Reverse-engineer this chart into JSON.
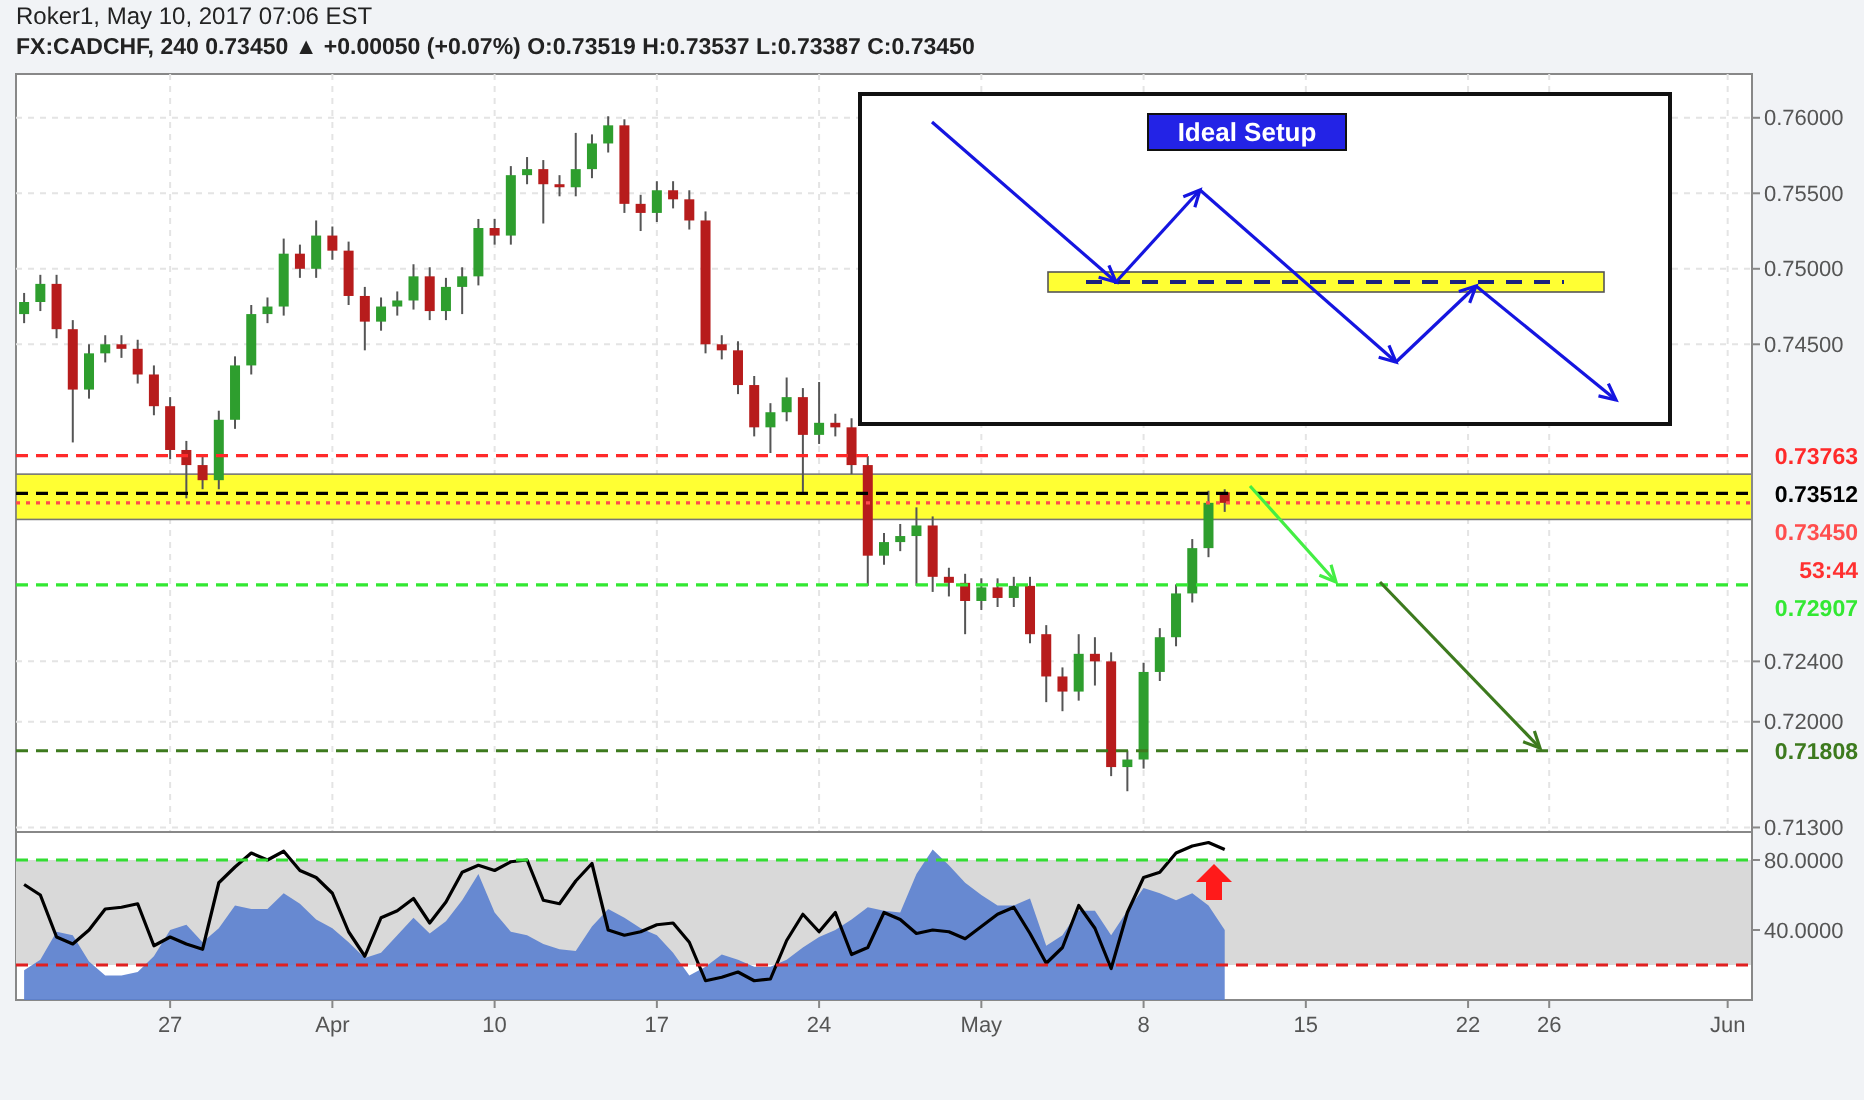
{
  "chart_data": [
    {
      "type": "candlestick",
      "title": "Roker1, May 10, 2017 07:06 EST",
      "subtitle": "FX:CADCHF, 240  0.73450 ▲ +0.00050 (+0.07%)  O:0.73519  H:0.73537  L:0.73387  C:0.73450",
      "categories": [
        null,
        null,
        null,
        null,
        null,
        null,
        null,
        null,
        null,
        null,
        null,
        null,
        null,
        null,
        null,
        null,
        null,
        null,
        null,
        null,
        null,
        null,
        null,
        null,
        null,
        null,
        null,
        null,
        null,
        null,
        null,
        null,
        null,
        null,
        null,
        null,
        null,
        null,
        null,
        null,
        null,
        null,
        null,
        null,
        null,
        null,
        null,
        null,
        null,
        null,
        null,
        null,
        null,
        null,
        null,
        null,
        null,
        null,
        null,
        null,
        null,
        null,
        null,
        null,
        null,
        null,
        null,
        null,
        null,
        null,
        null,
        null,
        null,
        null,
        null,
        null,
        null,
        null,
        null,
        null,
        null,
        null,
        null,
        null,
        null,
        null,
        null,
        null,
        null,
        null,
        null,
        null,
        null,
        null,
        null,
        null,
        null,
        null,
        null,
        null,
        null,
        null,
        null,
        null,
        null,
        null,
        null
      ],
      "ohlc": [
        [
          0.747,
          0.7484,
          0.7464,
          0.7478
        ],
        [
          0.7478,
          0.7496,
          0.7472,
          0.749
        ],
        [
          0.749,
          0.7496,
          0.7454,
          0.746
        ],
        [
          0.746,
          0.7466,
          0.7385,
          0.742
        ],
        [
          0.742,
          0.745,
          0.7414,
          0.7444
        ],
        [
          0.7444,
          0.7456,
          0.7438,
          0.745
        ],
        [
          0.745,
          0.7456,
          0.7441,
          0.7447
        ],
        [
          0.7447,
          0.7453,
          0.7424,
          0.743
        ],
        [
          0.743,
          0.7436,
          0.7403,
          0.7409
        ],
        [
          0.7409,
          0.7415,
          0.7374,
          0.738
        ],
        [
          0.738,
          0.7386,
          0.7348,
          0.737
        ],
        [
          0.737,
          0.7376,
          0.7354,
          0.736
        ],
        [
          0.736,
          0.7406,
          0.7354,
          0.74
        ],
        [
          0.74,
          0.7442,
          0.7394,
          0.7436
        ],
        [
          0.7436,
          0.7476,
          0.743,
          0.747
        ],
        [
          0.747,
          0.7481,
          0.7464,
          0.7475
        ],
        [
          0.7475,
          0.752,
          0.7469,
          0.751
        ],
        [
          0.751,
          0.7516,
          0.7494,
          0.75
        ],
        [
          0.75,
          0.7532,
          0.7494,
          0.7522
        ],
        [
          0.7522,
          0.7528,
          0.7506,
          0.7512
        ],
        [
          0.7512,
          0.7518,
          0.7476,
          0.7482
        ],
        [
          0.7482,
          0.7488,
          0.7446,
          0.7465
        ],
        [
          0.7465,
          0.7481,
          0.7459,
          0.7475
        ],
        [
          0.7475,
          0.7485,
          0.7469,
          0.7479
        ],
        [
          0.7479,
          0.7503,
          0.7473,
          0.7495
        ],
        [
          0.7495,
          0.7501,
          0.7466,
          0.7472
        ],
        [
          0.7472,
          0.7494,
          0.7466,
          0.7488
        ],
        [
          0.7488,
          0.7501,
          0.747,
          0.7495
        ],
        [
          0.7495,
          0.7533,
          0.7489,
          0.7527
        ],
        [
          0.7527,
          0.7533,
          0.7516,
          0.7522
        ],
        [
          0.7522,
          0.7568,
          0.7516,
          0.7562
        ],
        [
          0.7562,
          0.7574,
          0.7556,
          0.7566
        ],
        [
          0.7566,
          0.7572,
          0.753,
          0.7556
        ],
        [
          0.7556,
          0.7562,
          0.7548,
          0.7554
        ],
        [
          0.7554,
          0.759,
          0.7548,
          0.7566
        ],
        [
          0.7566,
          0.7589,
          0.756,
          0.7583
        ],
        [
          0.7583,
          0.7601,
          0.7577,
          0.7595
        ],
        [
          0.7595,
          0.7599,
          0.7537,
          0.7543
        ],
        [
          0.7543,
          0.7549,
          0.7525,
          0.7537
        ],
        [
          0.7537,
          0.7558,
          0.7531,
          0.7552
        ],
        [
          0.7552,
          0.7558,
          0.754,
          0.7546
        ],
        [
          0.7546,
          0.7552,
          0.7526,
          0.7532
        ],
        [
          0.7532,
          0.7538,
          0.7444,
          0.745
        ],
        [
          0.745,
          0.7456,
          0.744,
          0.7446
        ],
        [
          0.7446,
          0.7452,
          0.7417,
          0.7423
        ],
        [
          0.7423,
          0.7429,
          0.7389,
          0.7395
        ],
        [
          0.7395,
          0.7411,
          0.7378,
          0.7405
        ],
        [
          0.7405,
          0.7428,
          0.7399,
          0.7415
        ],
        [
          0.7415,
          0.7421,
          0.7351,
          0.739
        ],
        [
          0.739,
          0.7425,
          0.7384,
          0.7398
        ],
        [
          0.7398,
          0.7404,
          0.7389,
          0.7395
        ],
        [
          0.7395,
          0.7401,
          0.7364,
          0.737
        ],
        [
          0.737,
          0.7376,
          0.729,
          0.731
        ],
        [
          0.731,
          0.7325,
          0.7304,
          0.7319
        ],
        [
          0.7319,
          0.7331,
          0.7313,
          0.7323
        ],
        [
          0.7323,
          0.7342,
          0.729,
          0.733
        ],
        [
          0.733,
          0.7336,
          0.7286,
          0.7296
        ],
        [
          0.7296,
          0.7302,
          0.7283,
          0.7292
        ],
        [
          0.7292,
          0.7298,
          0.7258,
          0.728
        ],
        [
          0.728,
          0.7295,
          0.7274,
          0.7289
        ],
        [
          0.7289,
          0.7295,
          0.7276,
          0.7282
        ],
        [
          0.7282,
          0.7296,
          0.7276,
          0.729
        ],
        [
          0.729,
          0.7296,
          0.7252,
          0.7258
        ],
        [
          0.7258,
          0.7264,
          0.7213,
          0.723
        ],
        [
          0.723,
          0.7236,
          0.7207,
          0.722
        ],
        [
          0.722,
          0.7258,
          0.7214,
          0.7245
        ],
        [
          0.7245,
          0.7256,
          0.7224,
          0.724
        ],
        [
          0.724,
          0.7246,
          0.7164,
          0.717
        ],
        [
          0.717,
          0.7181,
          0.7154,
          0.7175
        ],
        [
          0.7175,
          0.7239,
          0.7169,
          0.7233
        ],
        [
          0.7233,
          0.7262,
          0.7227,
          0.7256
        ],
        [
          0.7256,
          0.7291,
          0.725,
          0.7285
        ],
        [
          0.7285,
          0.7321,
          0.7279,
          0.7315
        ],
        [
          0.7315,
          0.7353,
          0.7309,
          0.7345
        ],
        [
          0.7352,
          0.7354,
          0.7339,
          0.7345
        ],
        null,
        null,
        null,
        null,
        null,
        null,
        null,
        null,
        null,
        null,
        null,
        null,
        null,
        null,
        null,
        null,
        null,
        null,
        null,
        null,
        null,
        null,
        null,
        null,
        null,
        null,
        null,
        null,
        null,
        null,
        null,
        null
      ],
      "ylim": [
        0.7127,
        0.7629
      ],
      "yticks": [
        {
          "value": 0.76,
          "label": "0.76000"
        },
        {
          "value": 0.755,
          "label": "0.75500"
        },
        {
          "value": 0.75,
          "label": "0.75000"
        },
        {
          "value": 0.745,
          "label": "0.74500"
        },
        {
          "value": 0.724,
          "label": "0.72400"
        },
        {
          "value": 0.72,
          "label": "0.72000"
        },
        {
          "value": 0.713,
          "label": "0.71300"
        }
      ],
      "grid": true,
      "tick_labels": "y",
      "bands": [
        {
          "axis": "y",
          "from": 0.7334,
          "to": 0.7364,
          "color": "#ffff33"
        }
      ],
      "ref_lines": [
        {
          "axis": "y",
          "value": 0.73763,
          "label": "0.73763",
          "color": "#ff2a2a",
          "line_style": "dashed"
        },
        {
          "axis": "y",
          "value": 0.73512,
          "label": "0.73512",
          "color": "#000000",
          "line_style": "dashed"
        },
        {
          "axis": "y",
          "value": 0.7345,
          "label": "0.73450",
          "color": "#ff4d4d",
          "line_style": "dotted"
        },
        {
          "axis": "y",
          "value": 0.72907,
          "label": "0.72907",
          "color": "#33e833",
          "line_style": "dashed"
        },
        {
          "axis": "y",
          "value": 0.71808,
          "label": "0.71808",
          "color": "#3d7a1e",
          "line_style": "dashed"
        }
      ],
      "annotations": [
        "Ideal Setup",
        "53:44"
      ]
    },
    {
      "type": "line",
      "categories": [
        null,
        null,
        null,
        null,
        null,
        null,
        null,
        null,
        null,
        "27",
        null,
        null,
        null,
        null,
        null,
        null,
        null,
        null,
        null,
        "Apr",
        null,
        null,
        null,
        null,
        null,
        null,
        null,
        null,
        null,
        "10",
        null,
        null,
        null,
        null,
        null,
        null,
        null,
        null,
        null,
        "17",
        null,
        null,
        null,
        null,
        null,
        null,
        null,
        null,
        null,
        "24",
        null,
        null,
        null,
        null,
        null,
        null,
        null,
        null,
        null,
        "May",
        null,
        null,
        null,
        null,
        null,
        null,
        null,
        null,
        null,
        "8",
        null,
        null,
        null,
        null,
        null,
        null,
        null,
        null,
        null,
        "15",
        null,
        null,
        null,
        null,
        null,
        null,
        null,
        null,
        null,
        "22",
        null,
        null,
        null,
        null,
        "26",
        null,
        null,
        null,
        null,
        null,
        null,
        null,
        null,
        null,
        null,
        "Jun",
        null
      ],
      "series": [
        {
          "type": "area",
          "color": "#5a80cf",
          "values": [
            17,
            23,
            39,
            37,
            22,
            14,
            14,
            16,
            25,
            40,
            43,
            33,
            41,
            54,
            52,
            52,
            61,
            55,
            46,
            41,
            33,
            24,
            27,
            37,
            47,
            38,
            45,
            57,
            72,
            50,
            39,
            37,
            32,
            29,
            28,
            42,
            52,
            47,
            41,
            37,
            27,
            14,
            19,
            26,
            23,
            19,
            19,
            23,
            30,
            36,
            40,
            46,
            53,
            51,
            50,
            72,
            86,
            77,
            67,
            60,
            54,
            54,
            58,
            31,
            37,
            51,
            51,
            37,
            51,
            64,
            61,
            57,
            61,
            54,
            40,
            null,
            null,
            null,
            null,
            null,
            null,
            null,
            null,
            null,
            null,
            null,
            null,
            null,
            null,
            null,
            null,
            null,
            null,
            null,
            null,
            null,
            null,
            null,
            null,
            null,
            null,
            null,
            null,
            null,
            null,
            null,
            null
          ]
        },
        {
          "type": "line",
          "color": "#000000",
          "values": [
            66,
            60,
            36,
            32,
            40,
            52,
            53,
            55,
            31,
            36,
            32,
            29,
            67,
            76,
            84,
            80,
            85,
            74,
            70,
            61,
            39,
            25,
            47,
            51,
            58,
            44,
            56,
            73,
            77,
            74,
            79,
            80,
            57,
            55,
            68,
            78,
            40,
            37,
            39,
            43,
            44,
            33,
            11,
            13,
            16,
            11,
            12,
            34,
            49,
            39,
            50,
            26,
            30,
            50,
            46,
            38,
            40,
            39,
            35,
            42,
            49,
            53,
            38,
            21,
            30,
            54,
            41,
            18,
            50,
            70,
            73,
            84,
            88,
            90,
            86,
            null,
            null,
            null,
            null,
            null,
            null,
            null,
            null,
            null,
            null,
            null,
            null,
            null,
            null,
            null,
            null,
            null,
            null,
            null,
            null,
            null,
            null,
            null,
            null,
            null,
            null,
            null,
            null,
            null,
            null,
            null,
            null
          ]
        }
      ],
      "ylim": [
        0,
        96
      ],
      "yticks": [
        {
          "value": 80,
          "label": "80.0000"
        },
        {
          "value": 40,
          "label": "40.0000"
        }
      ],
      "bands": [
        {
          "axis": "y",
          "from": 20,
          "to": 80,
          "color": "#d9d9d9"
        }
      ],
      "ref_lines": [
        {
          "axis": "y",
          "value": 80,
          "color": "#33dd33",
          "line_style": "dashed"
        },
        {
          "axis": "y",
          "value": 20,
          "color": "#e02020",
          "line_style": "dashed"
        }
      ]
    }
  ]
}
